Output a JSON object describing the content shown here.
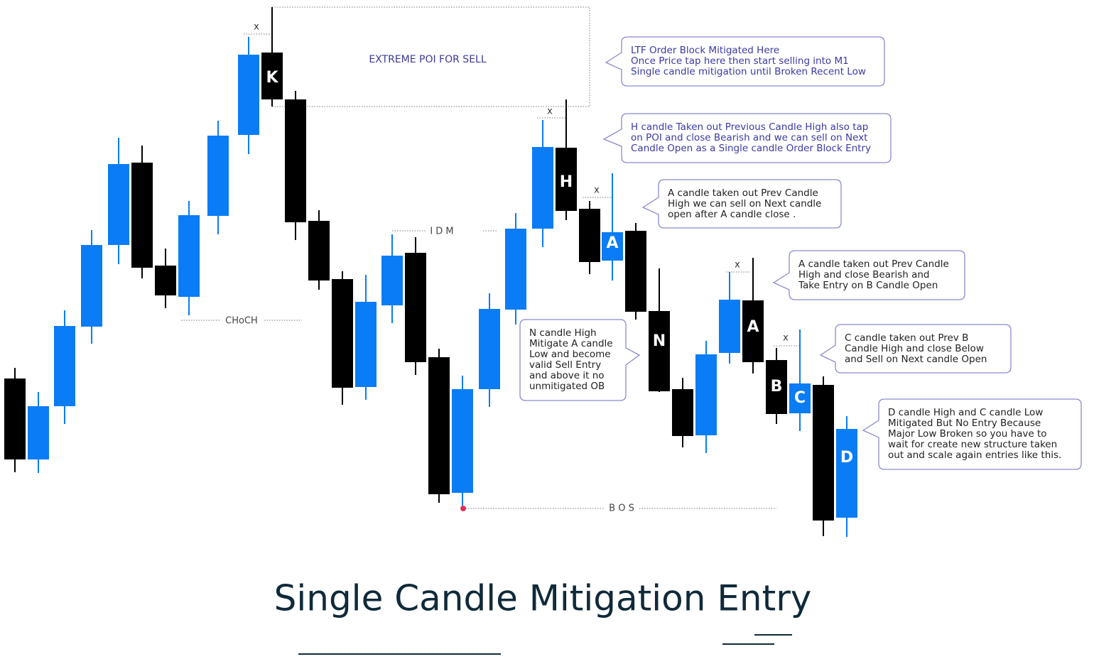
{
  "title": "Single Candle Mitigation Entry",
  "zones": {
    "poi": "EXTREME POI FOR SELL",
    "idm": "I D M",
    "choch": "CHoCH",
    "bos": "B O S"
  },
  "x_marks": [
    "x",
    "x",
    "x",
    "x",
    "x"
  ],
  "candle_labels": [
    "K",
    "H",
    "A",
    "N",
    "A",
    "B",
    "C",
    "D"
  ],
  "callouts": [
    {
      "lines": [
        "LTF Order Block Mitigated Here",
        "Once Price tap here then start selling into M1",
        "Single candle mitigation until Broken Recent Low"
      ]
    },
    {
      "lines": [
        "H candle Taken out Previous Candle High also tap",
        "on POI and close Bearish and we can sell on Next",
        "Candle Open as a Single candle Order Block Entry"
      ]
    },
    {
      "lines": [
        "A candle taken out Prev Candle",
        "High we can sell on Next candle",
        "open after A candle close ."
      ]
    },
    {
      "lines": [
        "A candle taken out Prev Candle",
        "High and close Bearish and",
        "Take Entry on B Candle Open"
      ]
    },
    {
      "lines": [
        "C candle taken out Prev B",
        "Candle  High and close Below",
        "and Sell on Next candle Open"
      ]
    },
    {
      "lines": [
        "D candle High and C candle Low",
        "Mitigated But No Entry Because",
        "Major Low Broken so you have to",
        "wait for create new structure taken",
        "out and scale again entries like this."
      ]
    },
    {
      "lines": [
        "N candle High",
        "Mitigate A candle",
        "Low and become",
        "valid Sell Entry",
        "and   above it no",
        "unmitigated OB"
      ]
    }
  ]
}
